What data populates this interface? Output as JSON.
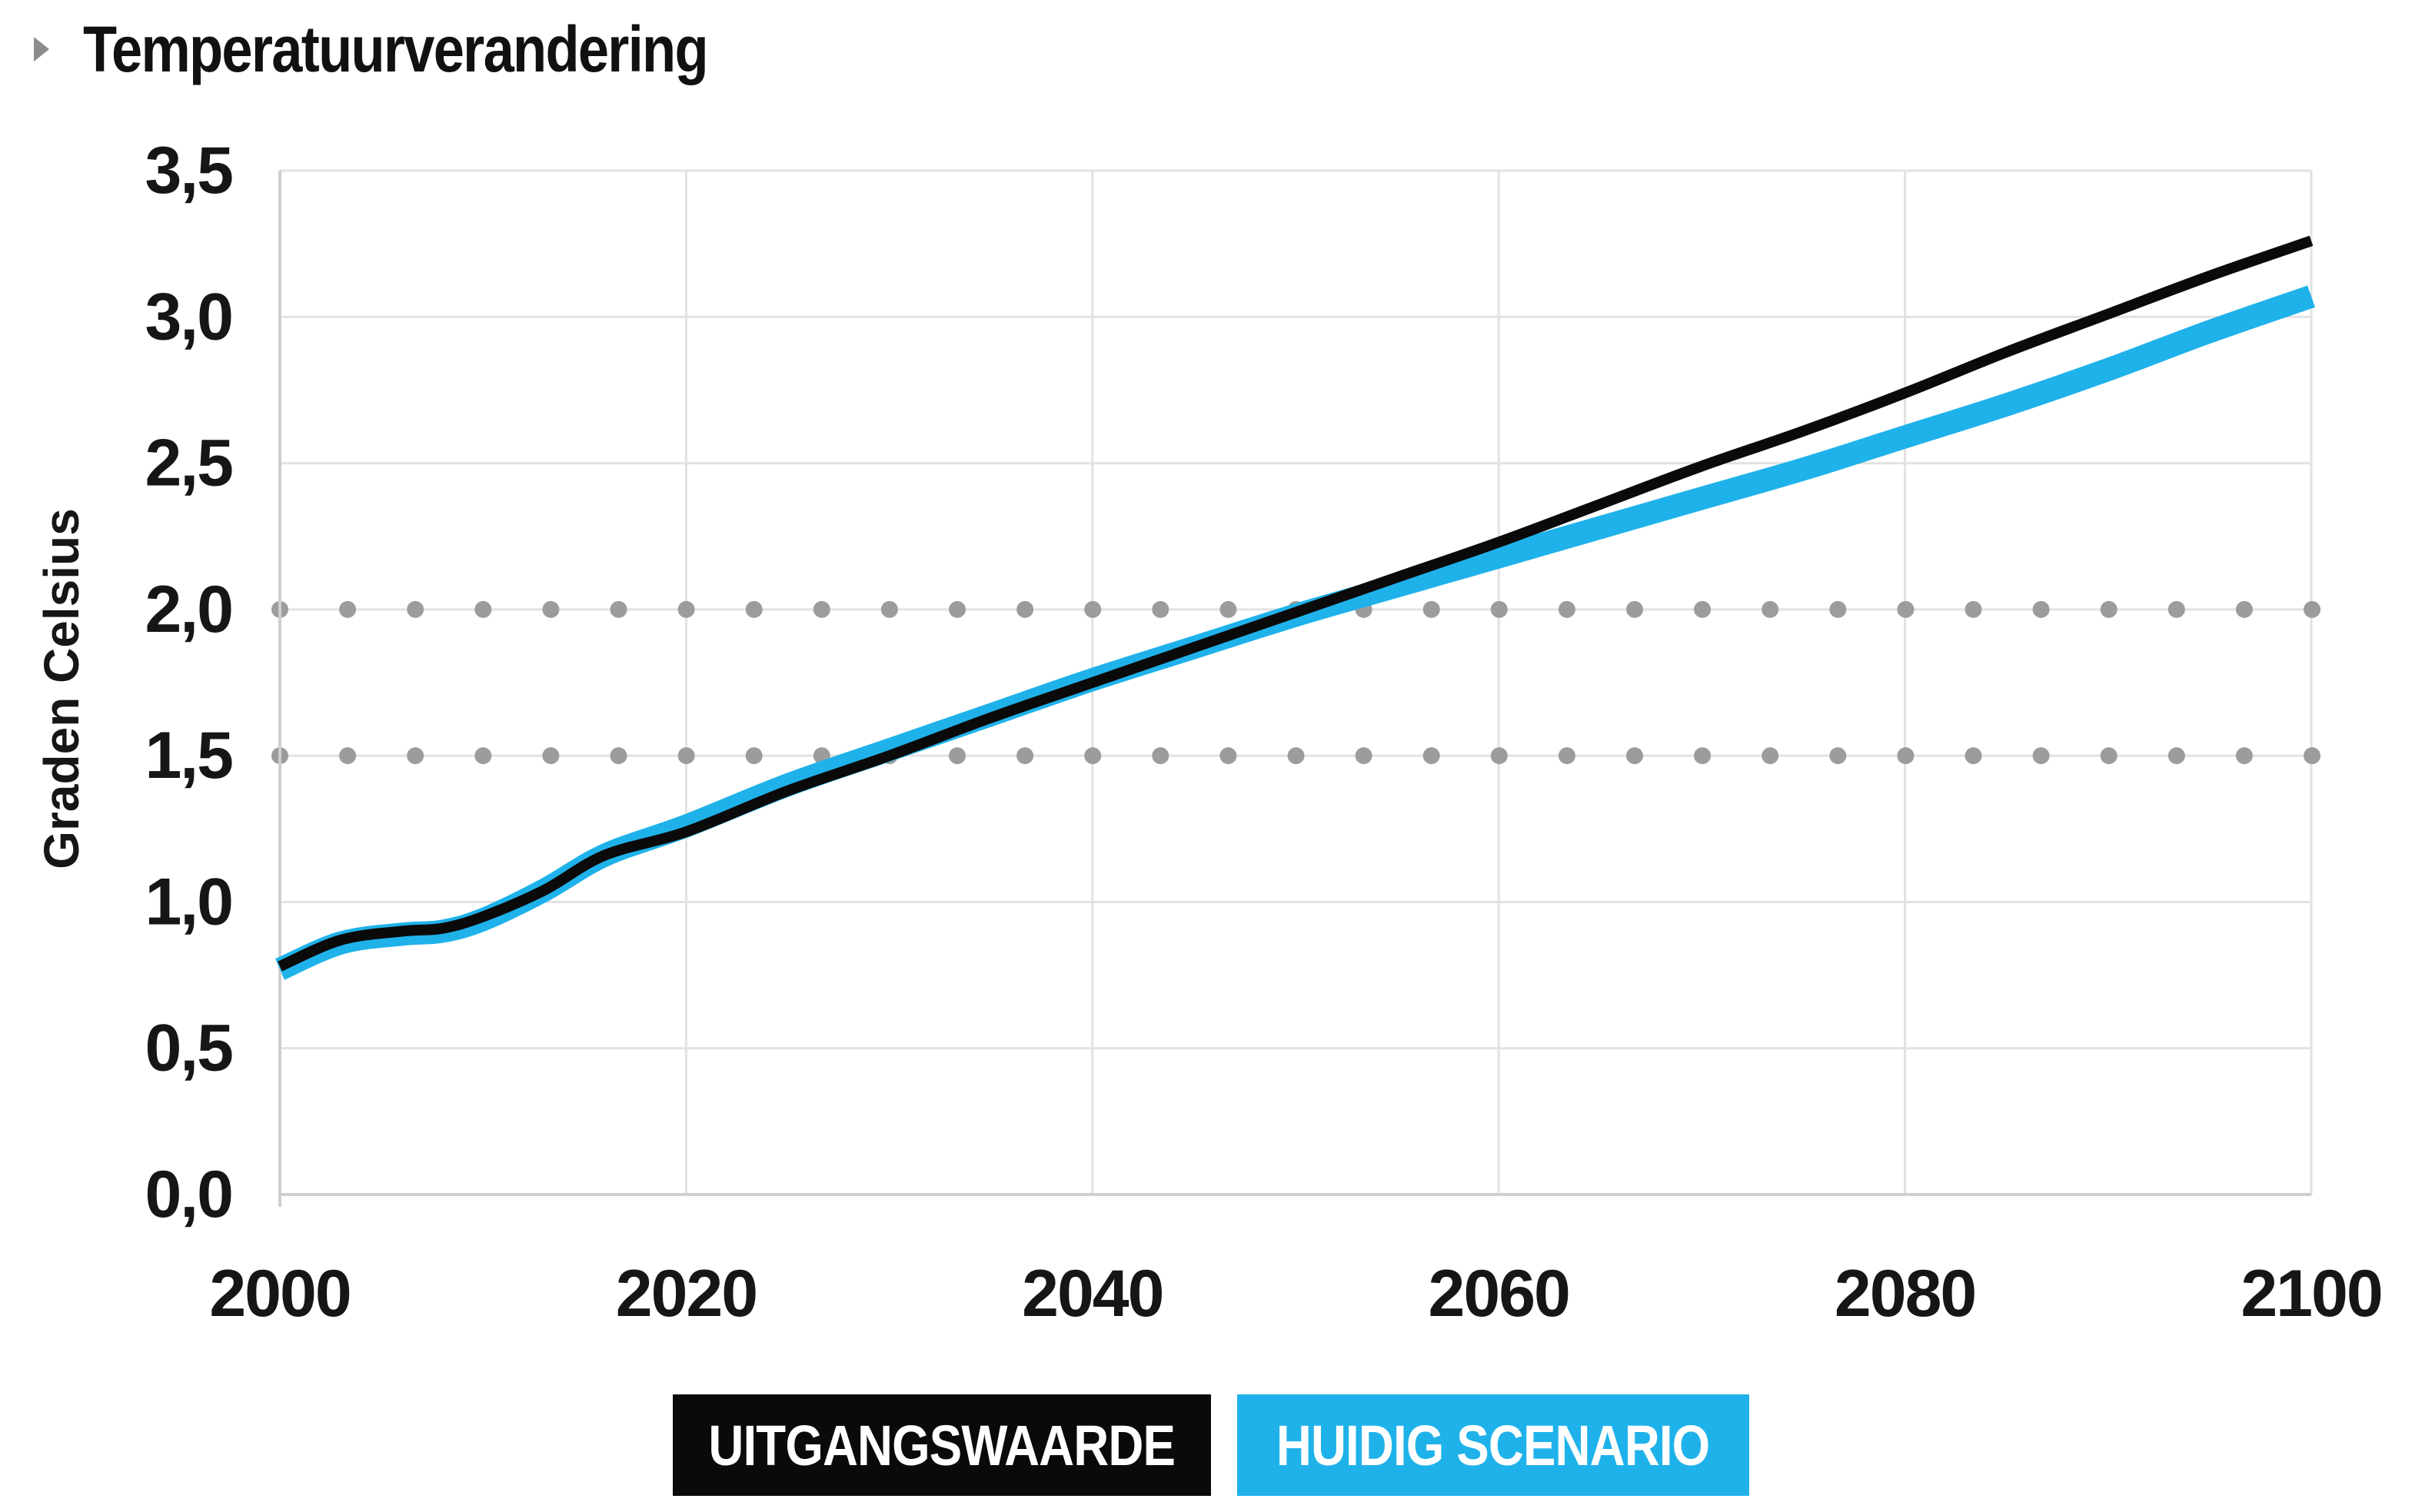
{
  "title": "Temperatuurverandering",
  "chart_data": {
    "type": "line",
    "title": "Temperatuurverandering",
    "xlabel": "",
    "ylabel": "Graden Celsius",
    "xlim": [
      2000,
      2100
    ],
    "ylim": [
      0,
      3.5
    ],
    "x_ticks": [
      "2000",
      "2020",
      "2040",
      "2060",
      "2080",
      "2100"
    ],
    "x_tick_values": [
      2000,
      2020,
      2040,
      2060,
      2080,
      2100
    ],
    "y_ticks": [
      "0,0",
      "0,5",
      "1,0",
      "1,5",
      "2,0",
      "2,5",
      "3,0",
      "3,5"
    ],
    "y_tick_values": [
      0,
      0.5,
      1.0,
      1.5,
      2.0,
      2.5,
      3.0,
      3.5
    ],
    "reference_lines": [
      {
        "y": 1.5,
        "style": "dotted"
      },
      {
        "y": 2.0,
        "style": "dotted"
      }
    ],
    "grid": true,
    "legend_position": "bottom-center",
    "series": [
      {
        "name": "UITGANGSWAARDE",
        "color": "#0a0a0a",
        "x": [
          2000,
          2003,
          2006,
          2008,
          2010,
          2013,
          2016,
          2020,
          2025,
          2030,
          2035,
          2040,
          2045,
          2050,
          2055,
          2060,
          2065,
          2070,
          2075,
          2080,
          2085,
          2090,
          2095,
          2100
        ],
        "values": [
          0.78,
          0.87,
          0.9,
          0.91,
          0.95,
          1.04,
          1.16,
          1.24,
          1.38,
          1.5,
          1.63,
          1.75,
          1.87,
          1.99,
          2.11,
          2.23,
          2.36,
          2.49,
          2.61,
          2.74,
          2.88,
          3.01,
          3.14,
          3.26
        ]
      },
      {
        "name": "HUIDIG SCENARIO",
        "color": "#1fb2ea",
        "x": [
          2000,
          2003,
          2006,
          2008,
          2010,
          2013,
          2016,
          2020,
          2025,
          2030,
          2035,
          2040,
          2045,
          2050,
          2055,
          2060,
          2065,
          2070,
          2075,
          2080,
          2085,
          2090,
          2095,
          2100
        ],
        "values": [
          0.77,
          0.86,
          0.89,
          0.9,
          0.94,
          1.04,
          1.16,
          1.26,
          1.4,
          1.52,
          1.64,
          1.76,
          1.87,
          1.98,
          2.08,
          2.18,
          2.28,
          2.38,
          2.48,
          2.59,
          2.7,
          2.82,
          2.95,
          3.07
        ]
      }
    ]
  },
  "legend": {
    "baseline_label": "UITGANGSWAARDE",
    "current_label": "HUIDIG SCENARIO"
  }
}
